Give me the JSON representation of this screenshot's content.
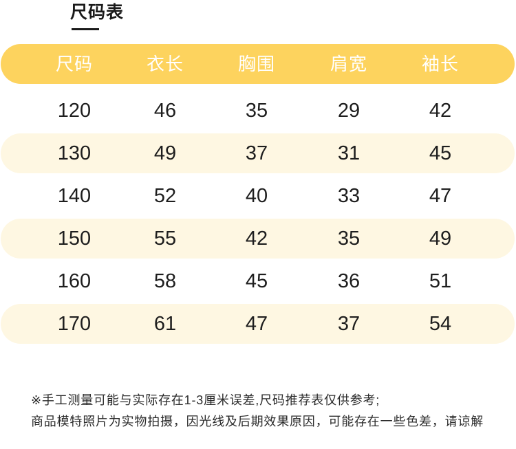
{
  "chart_data": {
    "type": "table",
    "title": "尺码表",
    "columns": [
      "尺码",
      "衣长",
      "胸围",
      "肩宽",
      "袖长"
    ],
    "rows": [
      [
        120,
        46,
        35,
        29,
        42
      ],
      [
        130,
        49,
        37,
        31,
        45
      ],
      [
        140,
        52,
        40,
        33,
        47
      ],
      [
        150,
        55,
        42,
        35,
        49
      ],
      [
        160,
        58,
        45,
        36,
        51
      ],
      [
        170,
        61,
        47,
        37,
        54
      ]
    ]
  },
  "notes": [
    "※手工测量可能与实际存在1-3厘米误差,尺码推荐表仅供参考;",
    "商品模特照片为实物拍摄，因光线及后期效果原因，可能存在一些色差，请谅解"
  ],
  "colors": {
    "header_background": "#FDD35E",
    "header_text": "#FFFFFF",
    "stripe_background": "#FEF7E2",
    "body_text": "#1E1E1E",
    "title": "#1A1A1A",
    "note_text": "#2B2B2B"
  }
}
